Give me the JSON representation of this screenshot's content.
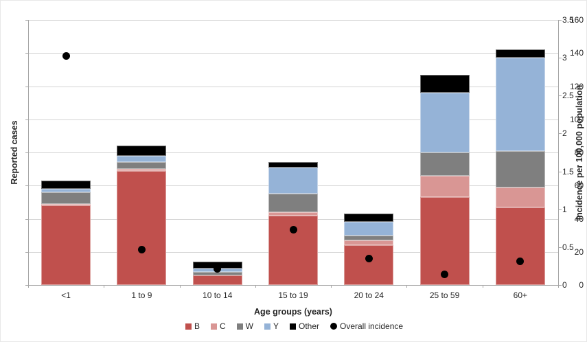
{
  "chart_data": {
    "type": "bar",
    "stacked": true,
    "categories": [
      "<1",
      "1 to 9",
      "10 to 14",
      "15 to 19",
      "20 to 24",
      "25 to 59",
      "60+"
    ],
    "series": [
      {
        "name": "B",
        "color": "#C0504D",
        "values": [
          48,
          69,
          6,
          42,
          24,
          53,
          47
        ]
      },
      {
        "name": "C",
        "color": "#D99694",
        "values": [
          1,
          1,
          0,
          2,
          3,
          13,
          12
        ]
      },
      {
        "name": "W",
        "color": "#7F7F7F",
        "values": [
          7,
          4,
          2,
          11,
          3,
          14,
          22
        ]
      },
      {
        "name": "Y",
        "color": "#95B3D7",
        "values": [
          2,
          4,
          2,
          16,
          8,
          36,
          56
        ]
      },
      {
        "name": "Other",
        "color": "#000000",
        "values": [
          5,
          6,
          4,
          3,
          5,
          11,
          5
        ]
      }
    ],
    "bar_totals": [
      63,
      84,
      14,
      74,
      43,
      127,
      142
    ],
    "dot_series": {
      "name": "Overall incidence",
      "color": "#000000",
      "values": [
        3.02,
        0.47,
        0.21,
        0.73,
        0.35,
        0.14,
        0.31
      ]
    },
    "left_axis": {
      "label": "Reported cases",
      "min": 0,
      "max": 160,
      "step": 20,
      "tick_labels": [
        "0",
        "20",
        "40",
        "60",
        "80",
        "100",
        "120",
        "140",
        "160"
      ]
    },
    "right_axis": {
      "label": "Incidence per 100,000 population",
      "min": 0,
      "max": 3.5,
      "step": 0.5,
      "tick_labels": [
        "0",
        "0.5",
        "1",
        "1.5",
        "2",
        "2.5",
        "3",
        "3.5"
      ]
    },
    "xlabel": "Age groups (years)",
    "legend_position": "bottom",
    "grid": true,
    "colors": {
      "gridline": "#d3d3d3",
      "axis_line": "#a6a6a6",
      "text": "#262626",
      "background": "#ffffff"
    }
  }
}
